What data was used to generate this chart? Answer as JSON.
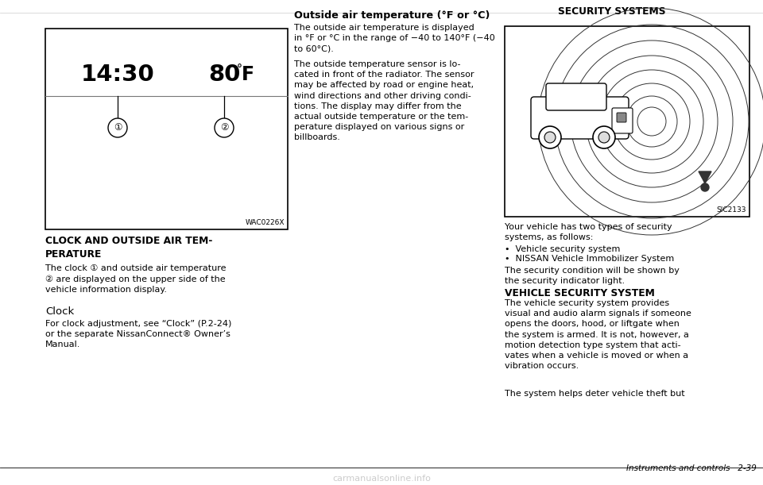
{
  "bg_color": "#ffffff",
  "page_title": "SECURITY SYSTEMS",
  "section_header": "CLOCK AND OUTSIDE AIR TEM-\nPERATURE",
  "body_text_1": "The clock ① and outside air temperature\n② are displayed on the upper side of the\nvehicle information display.",
  "subsection_header": "Clock",
  "body_text_2": "For clock adjustment, see “Clock” (P.2-24)\nor the separate NissanConnect® Owner’s\nManual.",
  "outside_air_header": "Outside air temperature (°F or °C)",
  "outside_air_text_1": "The outside air temperature is displayed\nin °F or °C in the range of −40 to 140°F (−40\nto 60°C).",
  "outside_air_text_2": "The outside temperature sensor is lo-\ncated in front of the radiator. The sensor\nmay be affected by road or engine heat,\nwind directions and other driving condi-\ntions. The display may differ from the\nactual outside temperature or the tem-\nperature displayed on various signs or\nbillboards.",
  "right_section_text": "Your vehicle has two types of security\nsystems, as follows:",
  "bullet1": "•  Vehicle security system",
  "bullet2": "•  NISSAN Vehicle Immobilizer System",
  "right_section_text2": "The security condition will be shown by\nthe security indicator light.",
  "vehicle_security_header": "VEHICLE SECURITY SYSTEM",
  "vehicle_security_text": "The vehicle security system provides\nvisual and audio alarm signals if someone\nopens the doors, hood, or liftgate when\nthe system is armed. It is not, however, a\nmotion detection type system that acti-\nvates when a vehicle is moved or when a\nvibration occurs.",
  "vehicle_security_text2": "The system helps deter vehicle theft but",
  "footer_text": "Instruments and controls   2-39",
  "display_clock": "14:30",
  "wac_code": "WAC0226X",
  "sic_code": "SIC2133",
  "font_size_body": 8.0,
  "font_size_header": 8.8,
  "font_size_subheader": 9.5
}
